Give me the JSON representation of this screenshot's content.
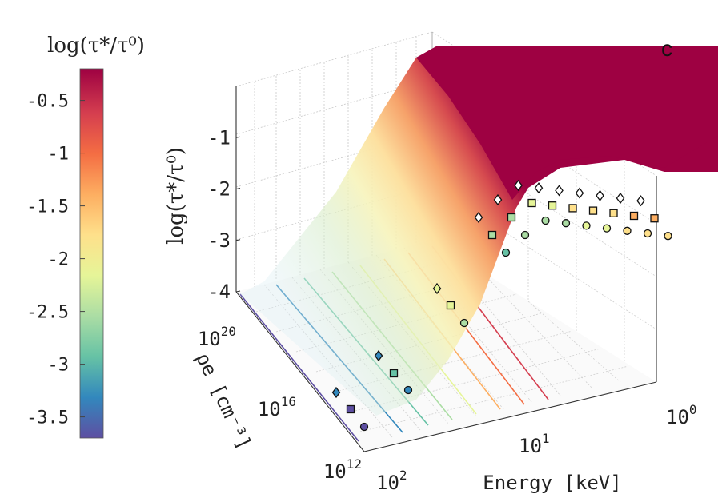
{
  "chart_data": {
    "type": "surface",
    "panel_label": "c",
    "colorbar": {
      "title": "log(τ*/τ⁰)",
      "ticks": [
        "-0.5",
        "-1",
        "-1.5",
        "-2",
        "-2.5",
        "-3",
        "-3.5"
      ],
      "tick_values": [
        -0.5,
        -1,
        -1.5,
        -2,
        -2.5,
        -3,
        -3.5
      ],
      "range": [
        -3.7,
        -0.2
      ],
      "colormap": [
        "#5e4fa2",
        "#3288bd",
        "#66c2a5",
        "#abdda4",
        "#e6f598",
        "#fee08b",
        "#fdae61",
        "#f46d43",
        "#d53e4f",
        "#9e0142"
      ]
    },
    "zlabel": "log(τ*/τ⁰)",
    "zticks": [
      "-1",
      "-2",
      "-3",
      "-4"
    ],
    "zlim": [
      -4,
      0
    ],
    "xlabel": "Energy [keV]",
    "xticks": [
      {
        "base": "10",
        "exp": "0"
      },
      {
        "base": "10",
        "exp": "1"
      },
      {
        "base": "10",
        "exp": "2"
      }
    ],
    "ylabel": "ρe [cm⁻³]",
    "yticks": [
      {
        "base": "10",
        "exp": "20"
      },
      {
        "base": "10",
        "exp": "16"
      },
      {
        "base": "10",
        "exp": "12"
      }
    ],
    "contour_levels": [
      -3.5,
      -3,
      -2.5,
      -2,
      -1.5,
      -1,
      -0.5
    ],
    "marker_series": [
      {
        "name": "diamonds",
        "marker": "diamond",
        "ridge_z": [
          -2.25,
          -2.1,
          -1.95,
          -1.8,
          -1.65,
          -1.5,
          -1.35,
          -1.2,
          -1.05
        ]
      },
      {
        "name": "squares",
        "marker": "square",
        "ridge_z": [
          -2.55,
          -2.4,
          -2.25,
          -2.1,
          -1.95,
          -1.8,
          -1.65,
          -1.5,
          -1.35
        ]
      },
      {
        "name": "circles",
        "marker": "circle",
        "ridge_z": [
          -2.85,
          -2.7,
          -2.55,
          -2.4,
          -2.25,
          -2.1,
          -1.95,
          -1.8,
          -1.65
        ]
      }
    ]
  }
}
